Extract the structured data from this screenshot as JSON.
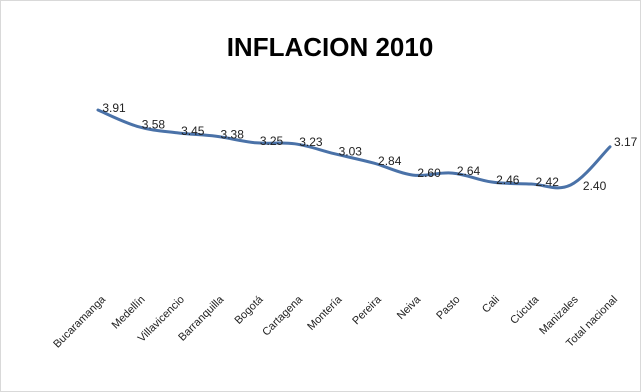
{
  "chart_data": {
    "type": "line",
    "title": "INFLACION 2010",
    "xlabel": "",
    "ylabel": "",
    "categories": [
      "Bucaramanga",
      "Medellín",
      "Villavicencio",
      "Barranquilla",
      "Bogotá",
      "Cartagena",
      "Montería",
      "Pereira",
      "Neiva",
      "Pasto",
      "Cali",
      "Cúcuta",
      "Manizales",
      "Total nacional"
    ],
    "series": [
      {
        "values": [
          3.91,
          3.58,
          3.45,
          3.38,
          3.25,
          3.23,
          3.03,
          2.84,
          2.6,
          2.64,
          2.46,
          2.42,
          2.4,
          3.17
        ],
        "labels": [
          "3.91",
          "3.58",
          "3.45",
          "3.38",
          "3.25",
          "3.23",
          "3.03",
          "2.84",
          "2.60",
          "2.64",
          "2.46",
          "2.42",
          "2.40",
          "3.17"
        ]
      }
    ],
    "line_color": "#4a72a8",
    "highlight_label_color": "#8b2d2d",
    "grid": false,
    "legend": "none"
  }
}
